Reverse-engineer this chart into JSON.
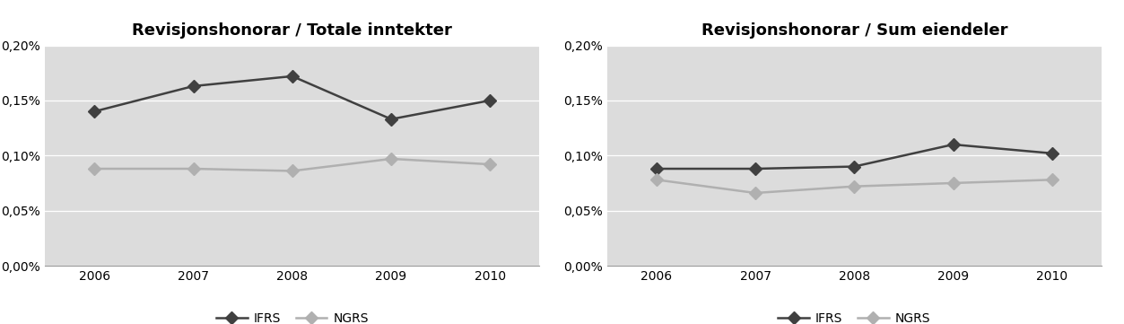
{
  "years": [
    2006,
    2007,
    2008,
    2009,
    2010
  ],
  "left": {
    "title": "Revisjonshonorar / Totale inntekter",
    "ifrs": [
      0.0014,
      0.00163,
      0.00172,
      0.00133,
      0.0015
    ],
    "ngrs": [
      0.00088,
      0.00088,
      0.00086,
      0.00097,
      0.00092
    ]
  },
  "right": {
    "title": "Revisjonshonorar / Sum eiendeler",
    "ifrs": [
      0.00088,
      0.00088,
      0.0009,
      0.0011,
      0.00102
    ],
    "ngrs": [
      0.00078,
      0.00066,
      0.00072,
      0.00075,
      0.00078
    ]
  },
  "ifrs_color": "#404040",
  "ngrs_color": "#b0b0b0",
  "bg_color": "#dcdcdc",
  "fig_bg_color": "#ffffff",
  "ylim": [
    0.0,
    0.002
  ],
  "yticks": [
    0.0,
    0.0005,
    0.001,
    0.0015,
    0.002
  ],
  "ytick_labels": [
    "0,00%",
    "0,05%",
    "0,10%",
    "0,15%",
    "0,20%"
  ],
  "legend_ifrs": "IFRS",
  "legend_ngrs": "NGRS",
  "title_fontsize": 13,
  "tick_fontsize": 10,
  "legend_fontsize": 10,
  "marker_size": 7,
  "line_width": 1.8
}
